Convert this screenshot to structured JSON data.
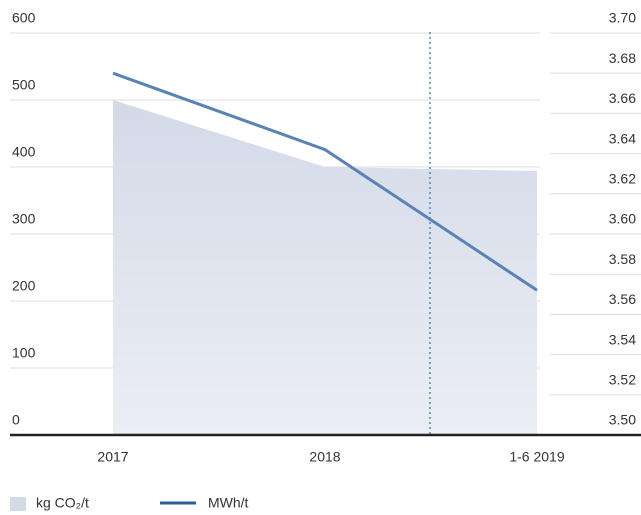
{
  "chart_data": {
    "type": "combo",
    "categories": [
      "2017",
      "2018",
      "1-6 2019"
    ],
    "series": [
      {
        "name": "kg CO₂/t",
        "type": "area",
        "color": "#d3dae8",
        "axis": "y",
        "values": [
          500,
          400,
          394
        ]
      },
      {
        "name": "MWh/t",
        "type": "line",
        "color": "#5b82b5",
        "legend_color": "#2e5d98",
        "axis": "y2",
        "values": [
          3.68,
          3.642,
          3.572
        ]
      }
    ],
    "ylim": [
      0,
      600
    ],
    "yticks": [
      0,
      100,
      200,
      300,
      400,
      500,
      600
    ],
    "y2lim": [
      3.5,
      3.7
    ],
    "y2ticks": [
      {
        "value": 3.5,
        "label": "3.50"
      },
      3.52,
      3.54,
      3.56,
      3.58,
      {
        "value": 3.6,
        "label": "3.60"
      },
      3.62,
      3.64,
      3.66,
      3.68,
      {
        "value": 3.7,
        "label": "3.70"
      }
    ],
    "grid": true
  }
}
